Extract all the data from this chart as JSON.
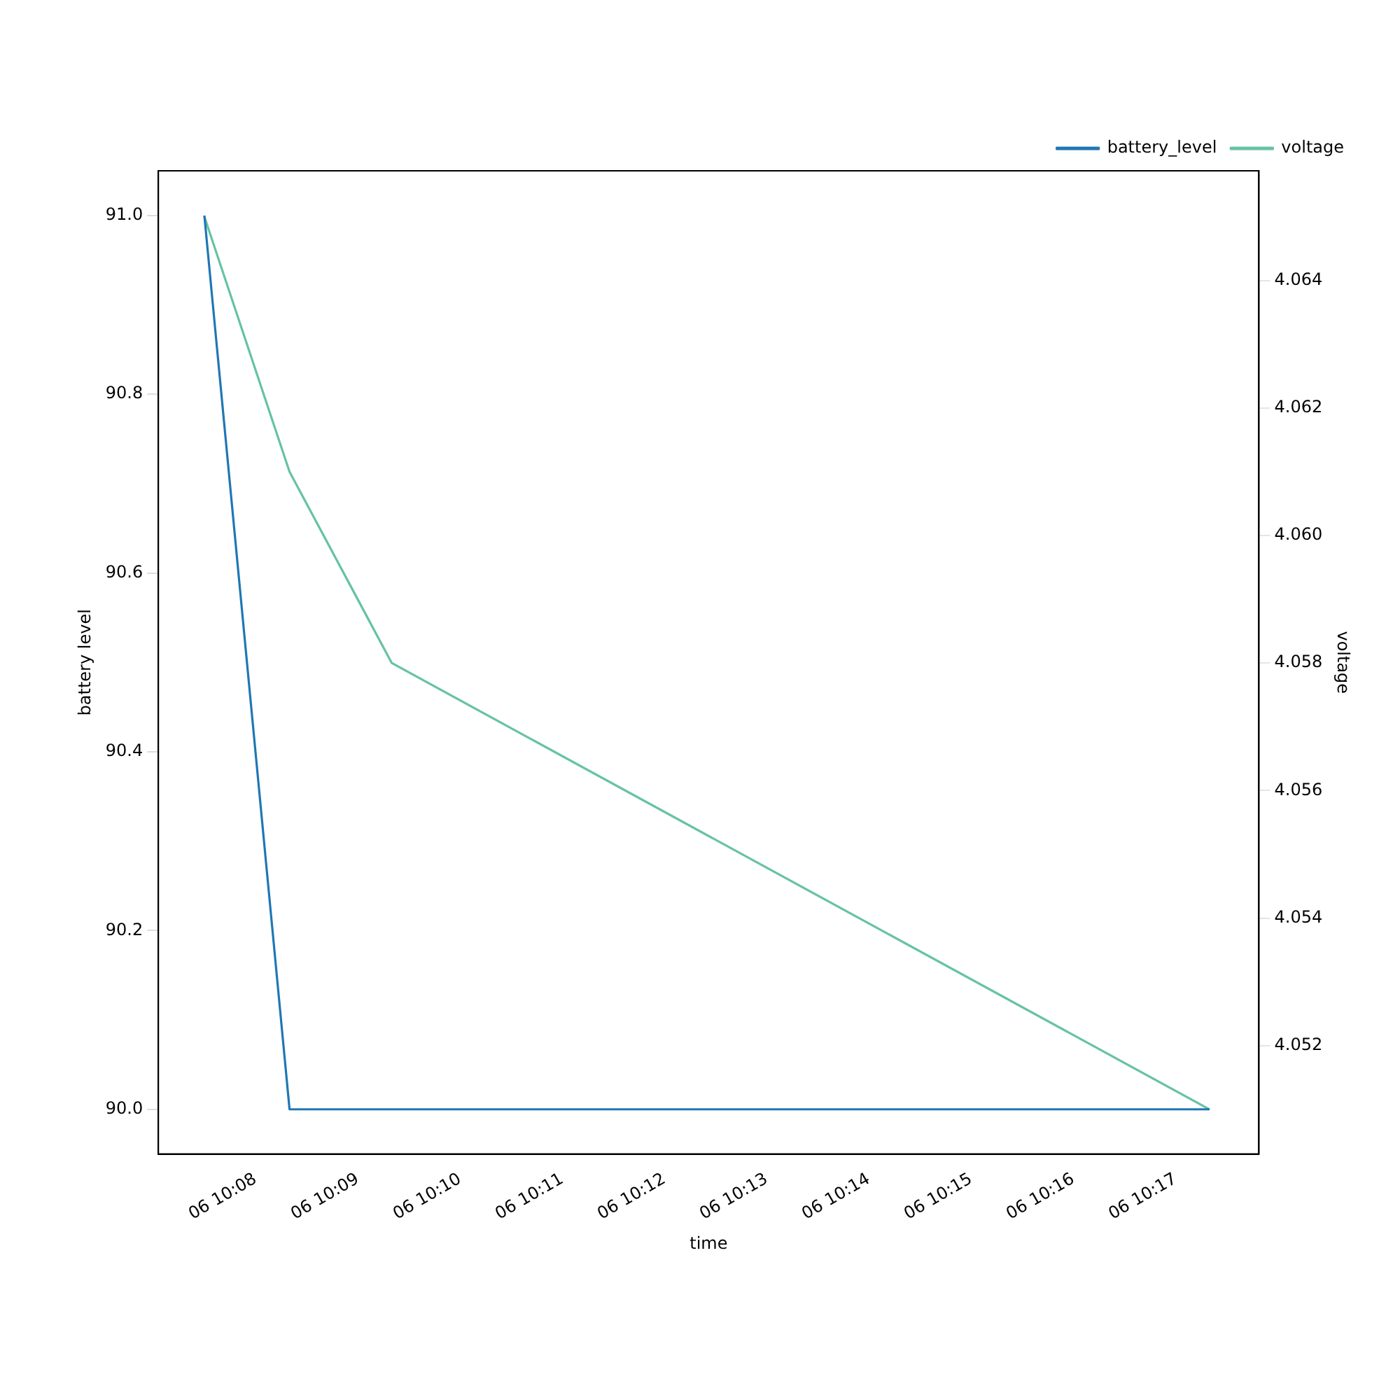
{
  "chart_data": {
    "type": "line",
    "xlabel": "time",
    "ylabel": "battery level",
    "y2label": "voltage",
    "x": [
      "--01-06T10:07:30",
      "--01-06T10:08:20",
      "--01-06T10:09:20",
      "--01-06T10:17:20"
    ],
    "series": [
      {
        "name": "battery_level",
        "color": "#1f77b4",
        "values": [
          91.0,
          90.0,
          90.0,
          90.0
        ]
      },
      {
        "name": "voltage",
        "color": "#66c2a5",
        "axis": "y2",
        "values": [
          4.065,
          4.061,
          4.058,
          4.051
        ]
      }
    ],
    "xlim": [
      "--01-06T10:07:03",
      "--01-06T10:17:49"
    ],
    "xticks": [
      {
        "value": "--01-06T10:08",
        "label": "06 10:08"
      },
      {
        "value": "--01-06T10:09",
        "label": "06 10:09"
      },
      {
        "value": "--01-06T10:10",
        "label": "06 10:10"
      },
      {
        "value": "--01-06T10:11",
        "label": "06 10:11"
      },
      {
        "value": "--01-06T10:12",
        "label": "06 10:12"
      },
      {
        "value": "--01-06T10:13",
        "label": "06 10:13"
      },
      {
        "value": "--01-06T10:14",
        "label": "06 10:14"
      },
      {
        "value": "--01-06T10:15",
        "label": "06 10:15"
      },
      {
        "value": "--01-06T10:16",
        "label": "06 10:16"
      },
      {
        "value": "--01-06T10:17",
        "label": "06 10:17"
      }
    ],
    "ylim": [
      89.95,
      91.05
    ],
    "yticks": [
      {
        "value": 90.0,
        "label": "90.0"
      },
      {
        "value": 90.2,
        "label": "90.2"
      },
      {
        "value": 90.4,
        "label": "90.4"
      },
      {
        "value": 90.6,
        "label": "90.6"
      },
      {
        "value": 90.8,
        "label": "90.8"
      },
      {
        "value": 91.0,
        "label": "91.0"
      }
    ],
    "y2lim": [
      4.0503,
      4.06572
    ],
    "y2ticks": [
      4.052,
      4.054,
      4.056,
      4.058,
      {
        "value": 4.06,
        "label": "4.060"
      },
      {
        "value": 4.062,
        "label": "4.062"
      },
      4.064
    ],
    "grid": false,
    "legend": "top right",
    "marker": "none",
    "line_style": "solid"
  }
}
